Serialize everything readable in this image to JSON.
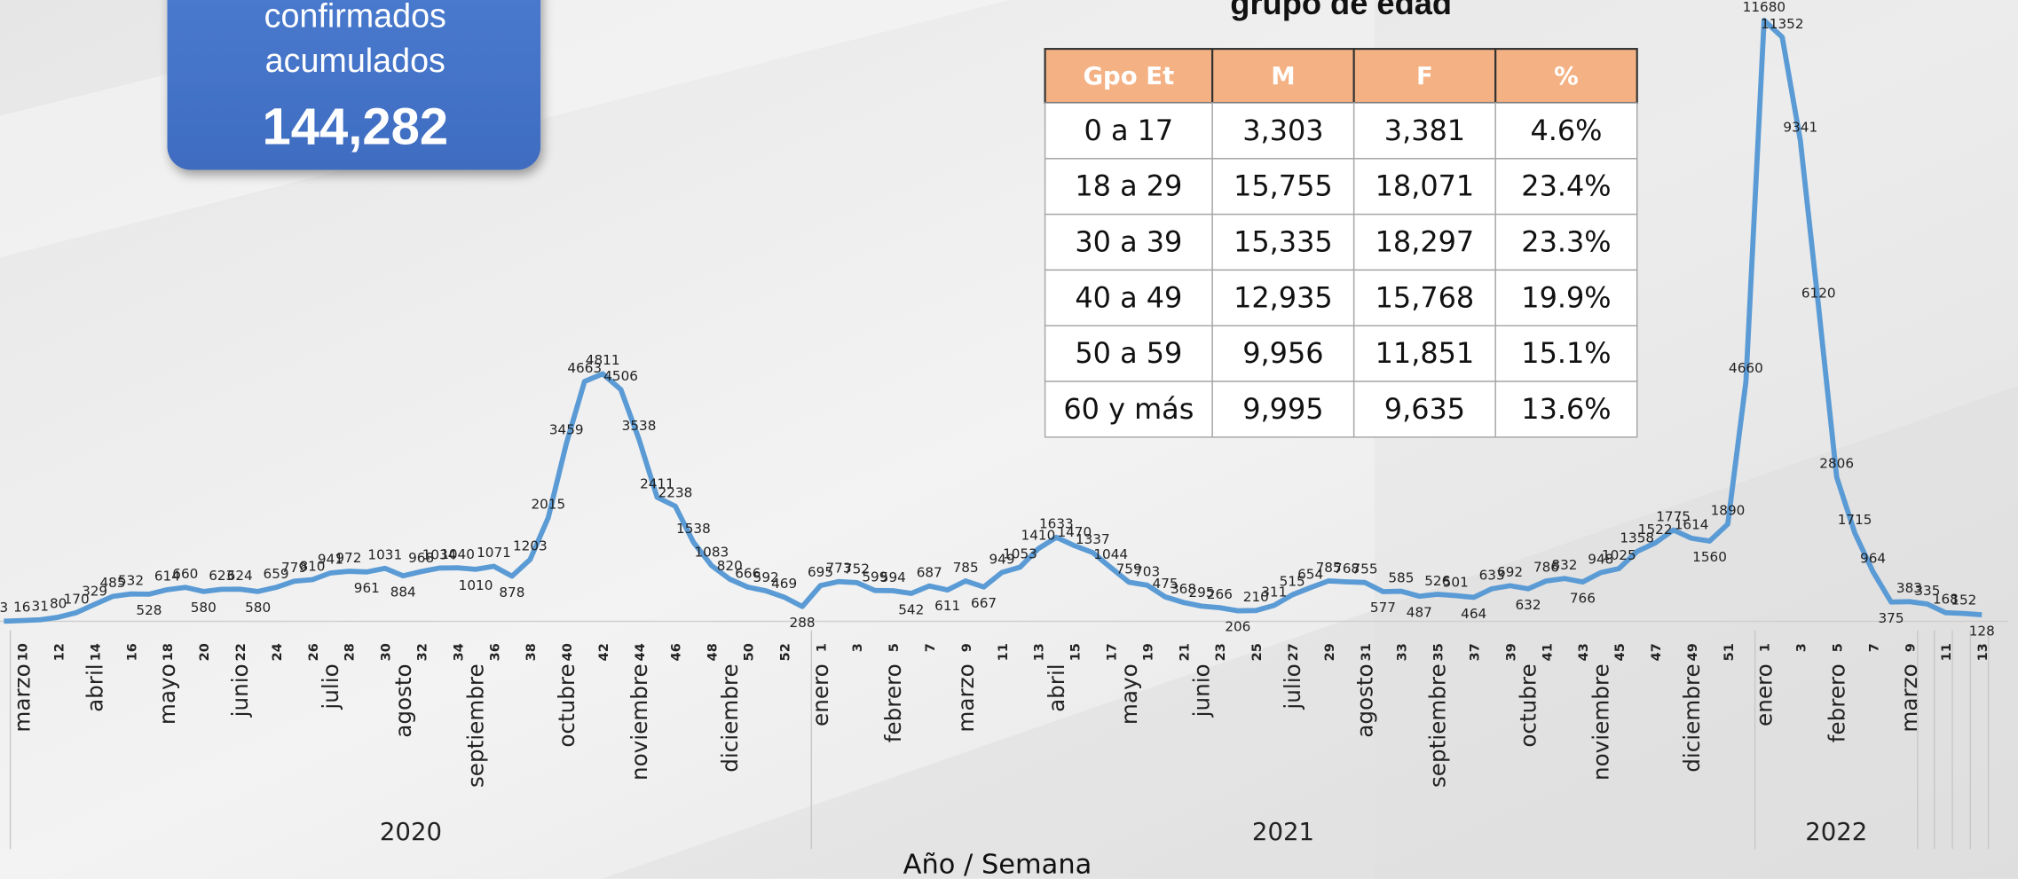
{
  "info_box": {
    "lines": [
      "confirmados",
      "acumulados"
    ],
    "total": "144,282"
  },
  "table": {
    "title": "grupo de edad",
    "header": [
      "Gpo Et",
      "M",
      "F",
      "%"
    ],
    "rows": [
      [
        "0 a 17",
        "3,303",
        "3,381",
        "4.6%"
      ],
      [
        "18 a 29",
        "15,755",
        "18,071",
        "23.4%"
      ],
      [
        "30 a 39",
        "15,335",
        "18,297",
        "23.3%"
      ],
      [
        "40 a 49",
        "12,935",
        "15,768",
        "19.9%"
      ],
      [
        "50 a 59",
        "9,956",
        "11,851",
        "15.1%"
      ],
      [
        "60 y más",
        "9,995",
        "9,635",
        "13.6%"
      ]
    ]
  },
  "chart_data": {
    "type": "line",
    "color": "#5b9bd5",
    "x_title": "Año / Semana",
    "ylim": [
      0,
      12000
    ],
    "groups": [
      {
        "label": "2020",
        "categories": [
          null,
          10,
          null,
          12,
          null,
          14,
          null,
          16,
          null,
          18,
          null,
          20,
          null,
          22,
          null,
          24,
          null,
          26,
          null,
          28,
          null,
          30,
          null,
          32,
          null,
          34,
          null,
          36,
          null,
          38,
          null,
          40,
          null,
          42,
          null,
          44,
          null,
          46,
          null,
          48,
          null,
          50,
          null,
          52,
          null
        ],
        "months": [
          null,
          "marzo",
          null,
          null,
          null,
          "abril",
          null,
          null,
          null,
          "mayo",
          null,
          null,
          null,
          "junio",
          null,
          null,
          null,
          null,
          "julio",
          null,
          null,
          null,
          "agosto",
          null,
          null,
          null,
          "septiembre",
          null,
          null,
          null,
          null,
          "octubre",
          null,
          null,
          null,
          "noviembre",
          null,
          null,
          null,
          null,
          "diciembre",
          null,
          null,
          null,
          null
        ],
        "values": [
          3,
          16,
          31,
          80,
          170,
          329,
          485,
          532,
          528,
          614,
          660,
          580,
          623,
          624,
          580,
          659,
          779,
          810,
          941,
          972,
          961,
          1031,
          884,
          968,
          1034,
          1040,
          1010,
          1071,
          878,
          1203,
          2015,
          3459,
          4663,
          4811,
          4506,
          3538,
          2411,
          2238,
          1538,
          1083,
          820,
          666,
          592,
          469,
          288
        ]
      },
      {
        "label": "2021",
        "categories": [
          1,
          null,
          3,
          null,
          5,
          null,
          7,
          null,
          9,
          null,
          11,
          null,
          13,
          null,
          15,
          null,
          17,
          null,
          19,
          null,
          21,
          null,
          23,
          null,
          25,
          null,
          27,
          null,
          29,
          null,
          31,
          null,
          33,
          null,
          35,
          null,
          37,
          null,
          39,
          null,
          41,
          null,
          43,
          null,
          45,
          null,
          47,
          null,
          49,
          null,
          51,
          null
        ],
        "months": [
          "enero",
          null,
          null,
          null,
          "febrero",
          null,
          null,
          null,
          "marzo",
          null,
          null,
          null,
          null,
          "abril",
          null,
          null,
          null,
          "mayo",
          null,
          null,
          null,
          "junio",
          null,
          null,
          null,
          null,
          "julio",
          null,
          null,
          null,
          "agosto",
          null,
          null,
          null,
          "septiembre",
          null,
          null,
          null,
          null,
          "octubre",
          null,
          null,
          null,
          "noviembre",
          null,
          null,
          null,
          null,
          "diciembre",
          null,
          null,
          null
        ],
        "values": [
          695,
          773,
          752,
          599,
          594,
          542,
          687,
          611,
          785,
          667,
          949,
          1053,
          1410,
          1633,
          1470,
          1337,
          1044,
          759,
          703,
          475,
          368,
          295,
          266,
          206,
          210,
          311,
          515,
          654,
          785,
          768,
          755,
          577,
          585,
          487,
          526,
          501,
          464,
          633,
          692,
          632,
          786,
          832,
          766,
          948,
          1025,
          1358,
          1522,
          1775,
          1614,
          1560,
          1890,
          4660
        ]
      },
      {
        "label": "2022",
        "categories": [
          1,
          null,
          3,
          null,
          5,
          null,
          7,
          null,
          9,
          null,
          11,
          null,
          13
        ],
        "months": [
          "enero",
          null,
          null,
          null,
          "febrero",
          null,
          null,
          null,
          "marzo",
          null,
          null,
          null,
          null
        ],
        "values": [
          11680,
          11352,
          9341,
          6120,
          2806,
          1715,
          964,
          375,
          383,
          335,
          168,
          152,
          128
        ]
      }
    ]
  }
}
